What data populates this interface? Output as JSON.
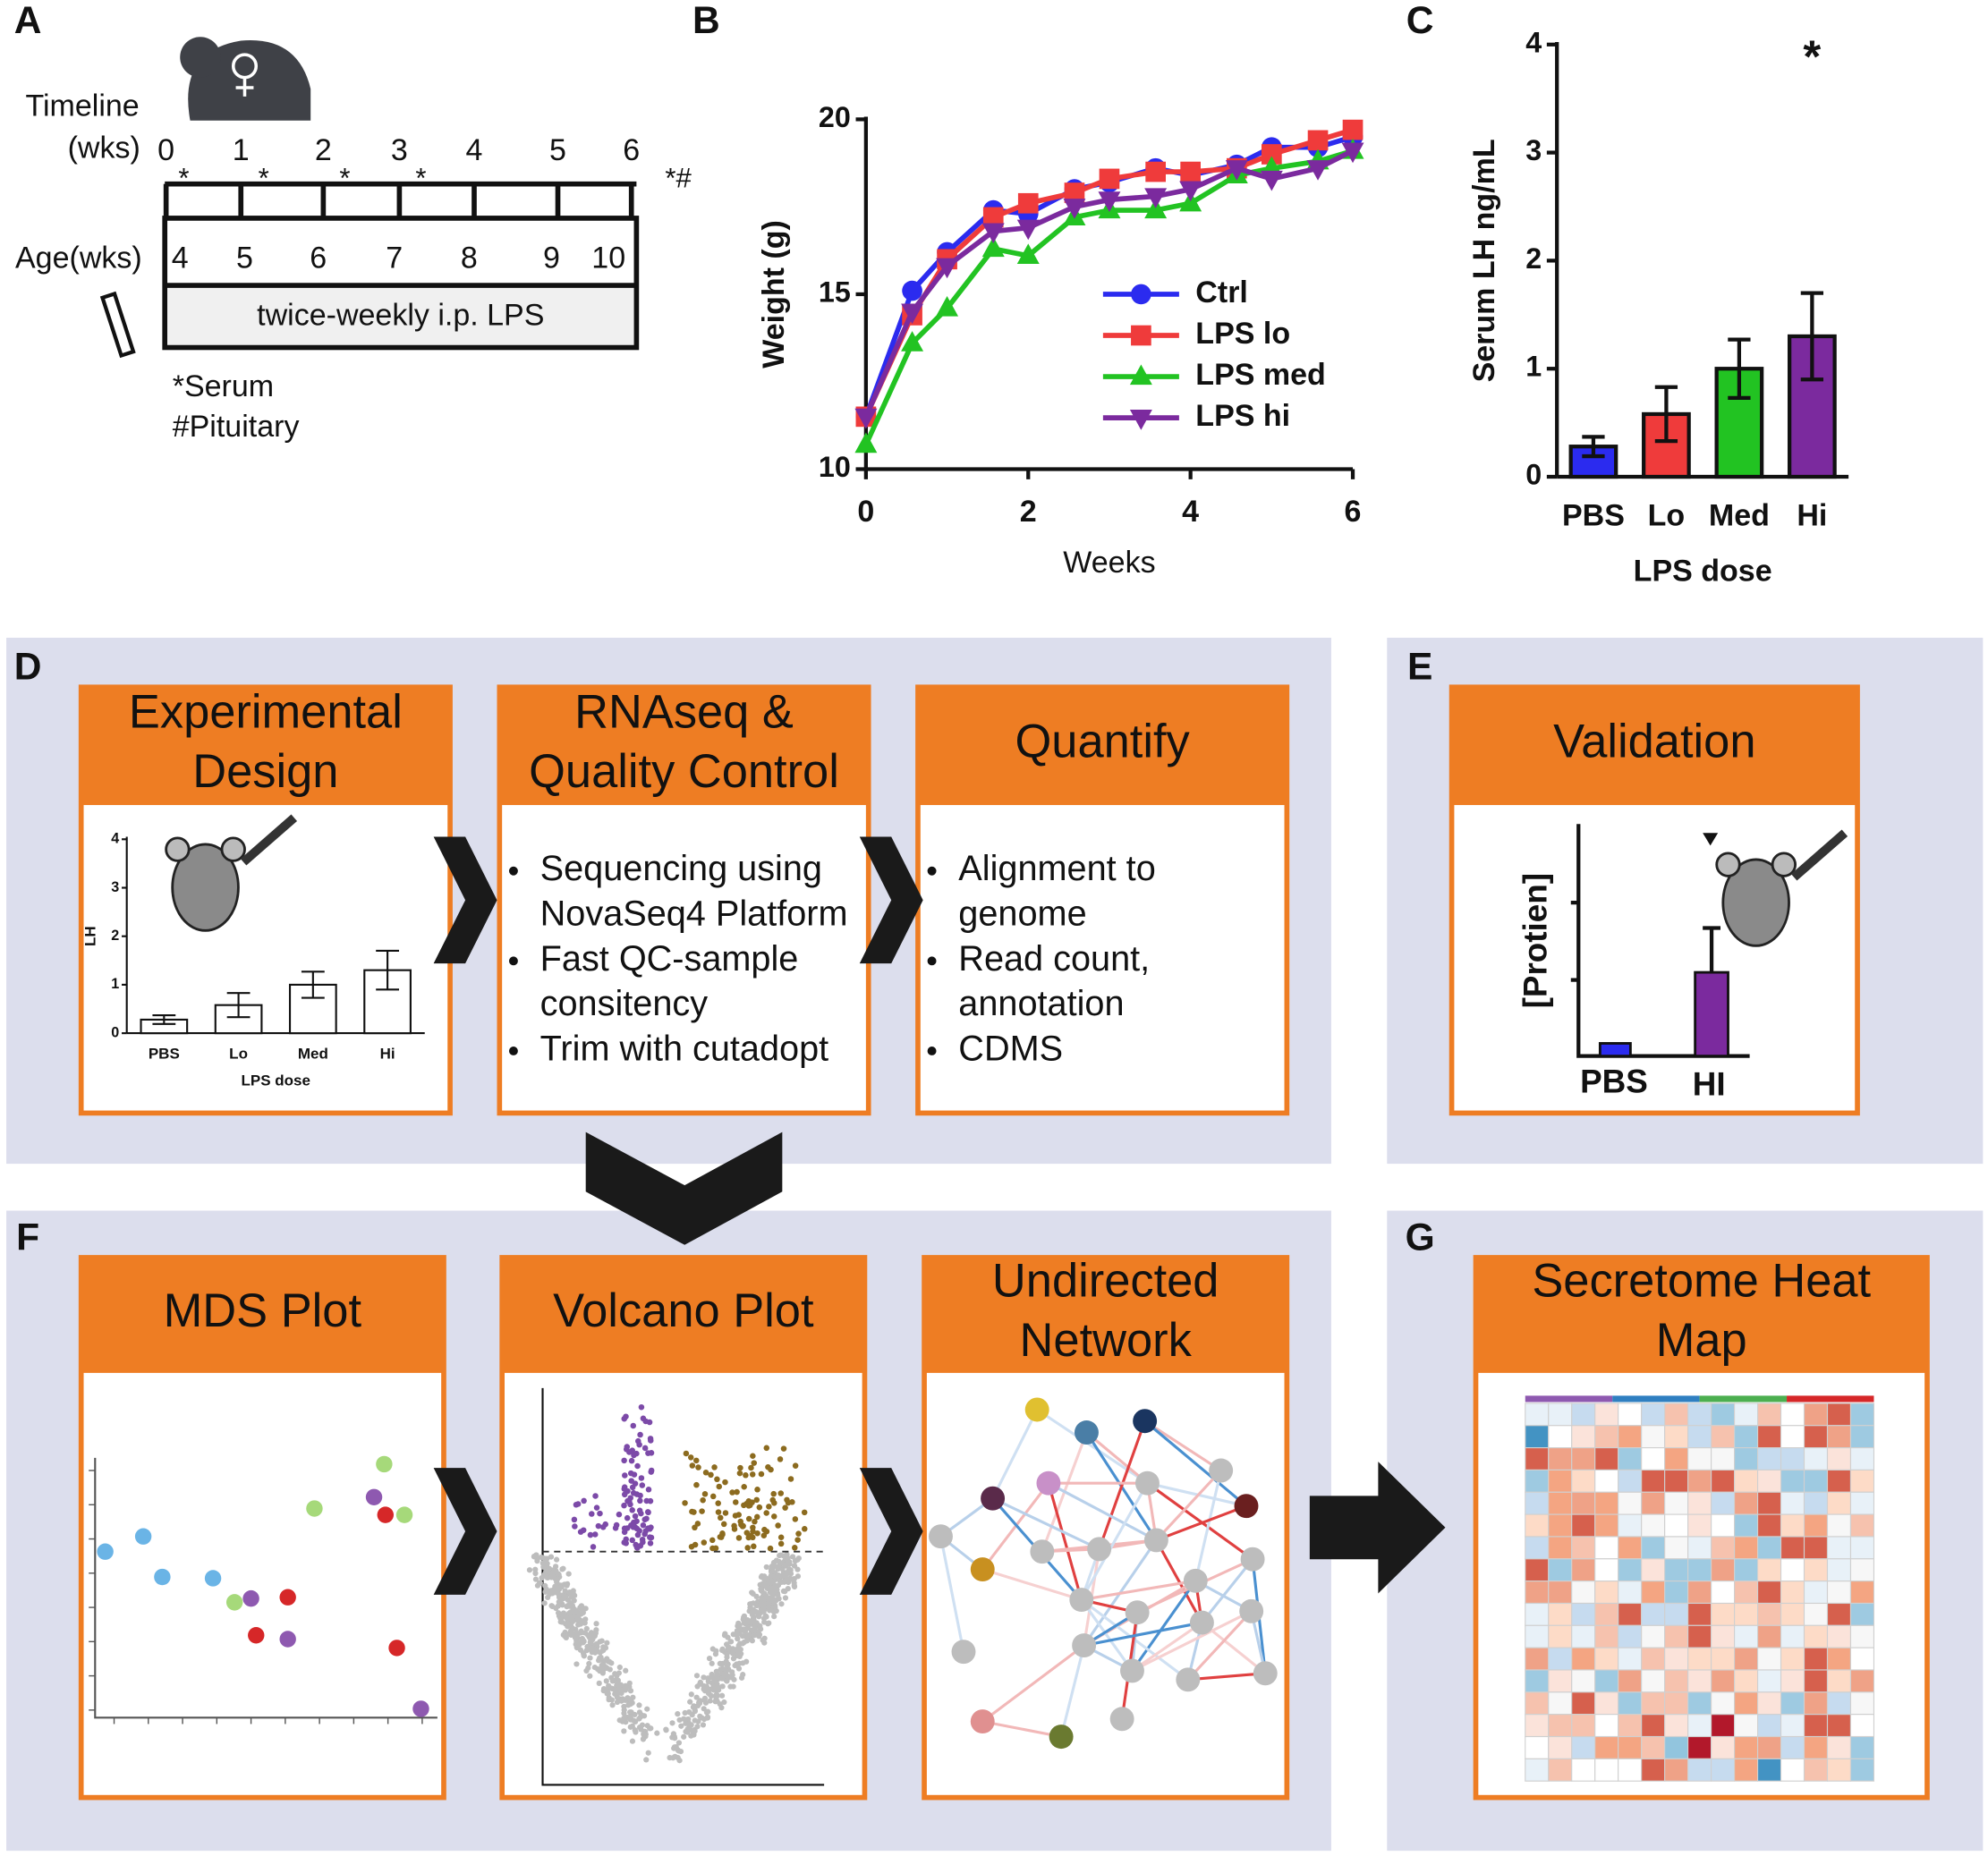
{
  "chart_data": [
    {
      "type": "line",
      "ylabel": "Weight (g)",
      "xlabel": "Weeks",
      "x": [
        0,
        0.57,
        1,
        1.57,
        2,
        2.57,
        3,
        3.57,
        4,
        4.57,
        5,
        5.57,
        6
      ],
      "xlim": [
        0,
        6
      ],
      "xticks": [
        0,
        2,
        4,
        6
      ],
      "ylim": [
        10,
        20
      ],
      "yticks": [
        10,
        15,
        20
      ],
      "legend": "lower right",
      "series": [
        {
          "name": "Ctrl",
          "color": "#2b2bef",
          "marker": "circle",
          "values": [
            11.5,
            15.1,
            16.2,
            17.4,
            17.3,
            18.0,
            18.2,
            18.6,
            18.4,
            18.7,
            19.2,
            19.2,
            19.5
          ]
        },
        {
          "name": "LPS lo",
          "color": "#ef3b3b",
          "marker": "square",
          "values": [
            11.5,
            14.4,
            16.0,
            17.2,
            17.6,
            17.9,
            18.3,
            18.5,
            18.5,
            18.6,
            19.0,
            19.4,
            19.7
          ]
        },
        {
          "name": "LPS med",
          "color": "#22c322",
          "marker": "triangle-up",
          "values": [
            10.7,
            13.6,
            14.6,
            16.3,
            16.1,
            17.2,
            17.4,
            17.4,
            17.6,
            18.4,
            18.6,
            18.8,
            19.1
          ]
        },
        {
          "name": "LPS hi",
          "color": "#7b2a9e",
          "marker": "triangle-down",
          "values": [
            11.5,
            14.5,
            15.8,
            16.8,
            16.9,
            17.5,
            17.7,
            17.8,
            18.0,
            18.6,
            18.3,
            18.6,
            19.1
          ]
        }
      ]
    },
    {
      "type": "bar",
      "ylabel": "Serum LH ng/mL",
      "xlabel": "LPS dose",
      "annotation": "*",
      "categories": [
        "PBS",
        "Lo",
        "Med",
        "Hi"
      ],
      "values": [
        0.28,
        0.58,
        1.0,
        1.3
      ],
      "errors": [
        0.09,
        0.25,
        0.27,
        0.4
      ],
      "colors": [
        "#2b2bef",
        "#ef3b3b",
        "#22c322",
        "#7b2a9e"
      ],
      "ylim": [
        0,
        4
      ],
      "yticks": [
        0,
        1,
        2,
        3,
        4
      ]
    },
    {
      "type": "bar",
      "ylabel": "LH",
      "xlabel": "LPS dose",
      "categories": [
        "PBS",
        "Lo",
        "Med",
        "Hi"
      ],
      "values": [
        0.28,
        0.58,
        1.0,
        1.3
      ],
      "errors": [
        0.09,
        0.25,
        0.27,
        0.4
      ],
      "color": "#ffffff",
      "ylim": [
        0,
        4
      ],
      "yticks": [
        0,
        1,
        2,
        3,
        4
      ]
    }
  ],
  "panel_labels": [
    "A",
    "B",
    "C",
    "D",
    "E",
    "F",
    "G"
  ],
  "timeline": {
    "label": "Timeline",
    "unit": "(wks)",
    "weeks": [
      "0",
      "1",
      "2",
      "3",
      "4",
      "5",
      "6"
    ],
    "marks": [
      "*",
      "*",
      "*",
      "*",
      "*#"
    ],
    "age_label": "Age(wks)",
    "ages": [
      "4",
      "5",
      "6",
      "7",
      "8",
      "9",
      "10"
    ],
    "bar_text": "twice-weekly i.p. LPS",
    "notes": [
      "*Serum",
      "#Pituitary"
    ]
  },
  "steps": [
    {
      "title": [
        "Experimental",
        "Design"
      ]
    },
    {
      "title": [
        "RNAseq &",
        "Quality Control"
      ],
      "items": [
        [
          "Sequencing using",
          "NovaSeq4 Platform"
        ],
        [
          "Fast QC-sample",
          "consitency"
        ],
        [
          "Trim with cutadopt"
        ]
      ]
    },
    {
      "title": [
        "Quantify"
      ],
      "items": [
        [
          "Alignment to",
          "genome"
        ],
        [
          "Read count,",
          "annotation"
        ],
        [
          "CDMS"
        ]
      ]
    },
    {
      "title": [
        "Validation"
      ],
      "ylabel": "[Protien]",
      "categories": [
        "PBS",
        "HI"
      ]
    },
    {
      "title": [
        "MDS Plot"
      ]
    },
    {
      "title": [
        "Volcano Plot"
      ]
    },
    {
      "title": [
        "Undirected",
        "Network"
      ]
    },
    {
      "title": [
        "Secretome Heat",
        "Map"
      ]
    }
  ]
}
